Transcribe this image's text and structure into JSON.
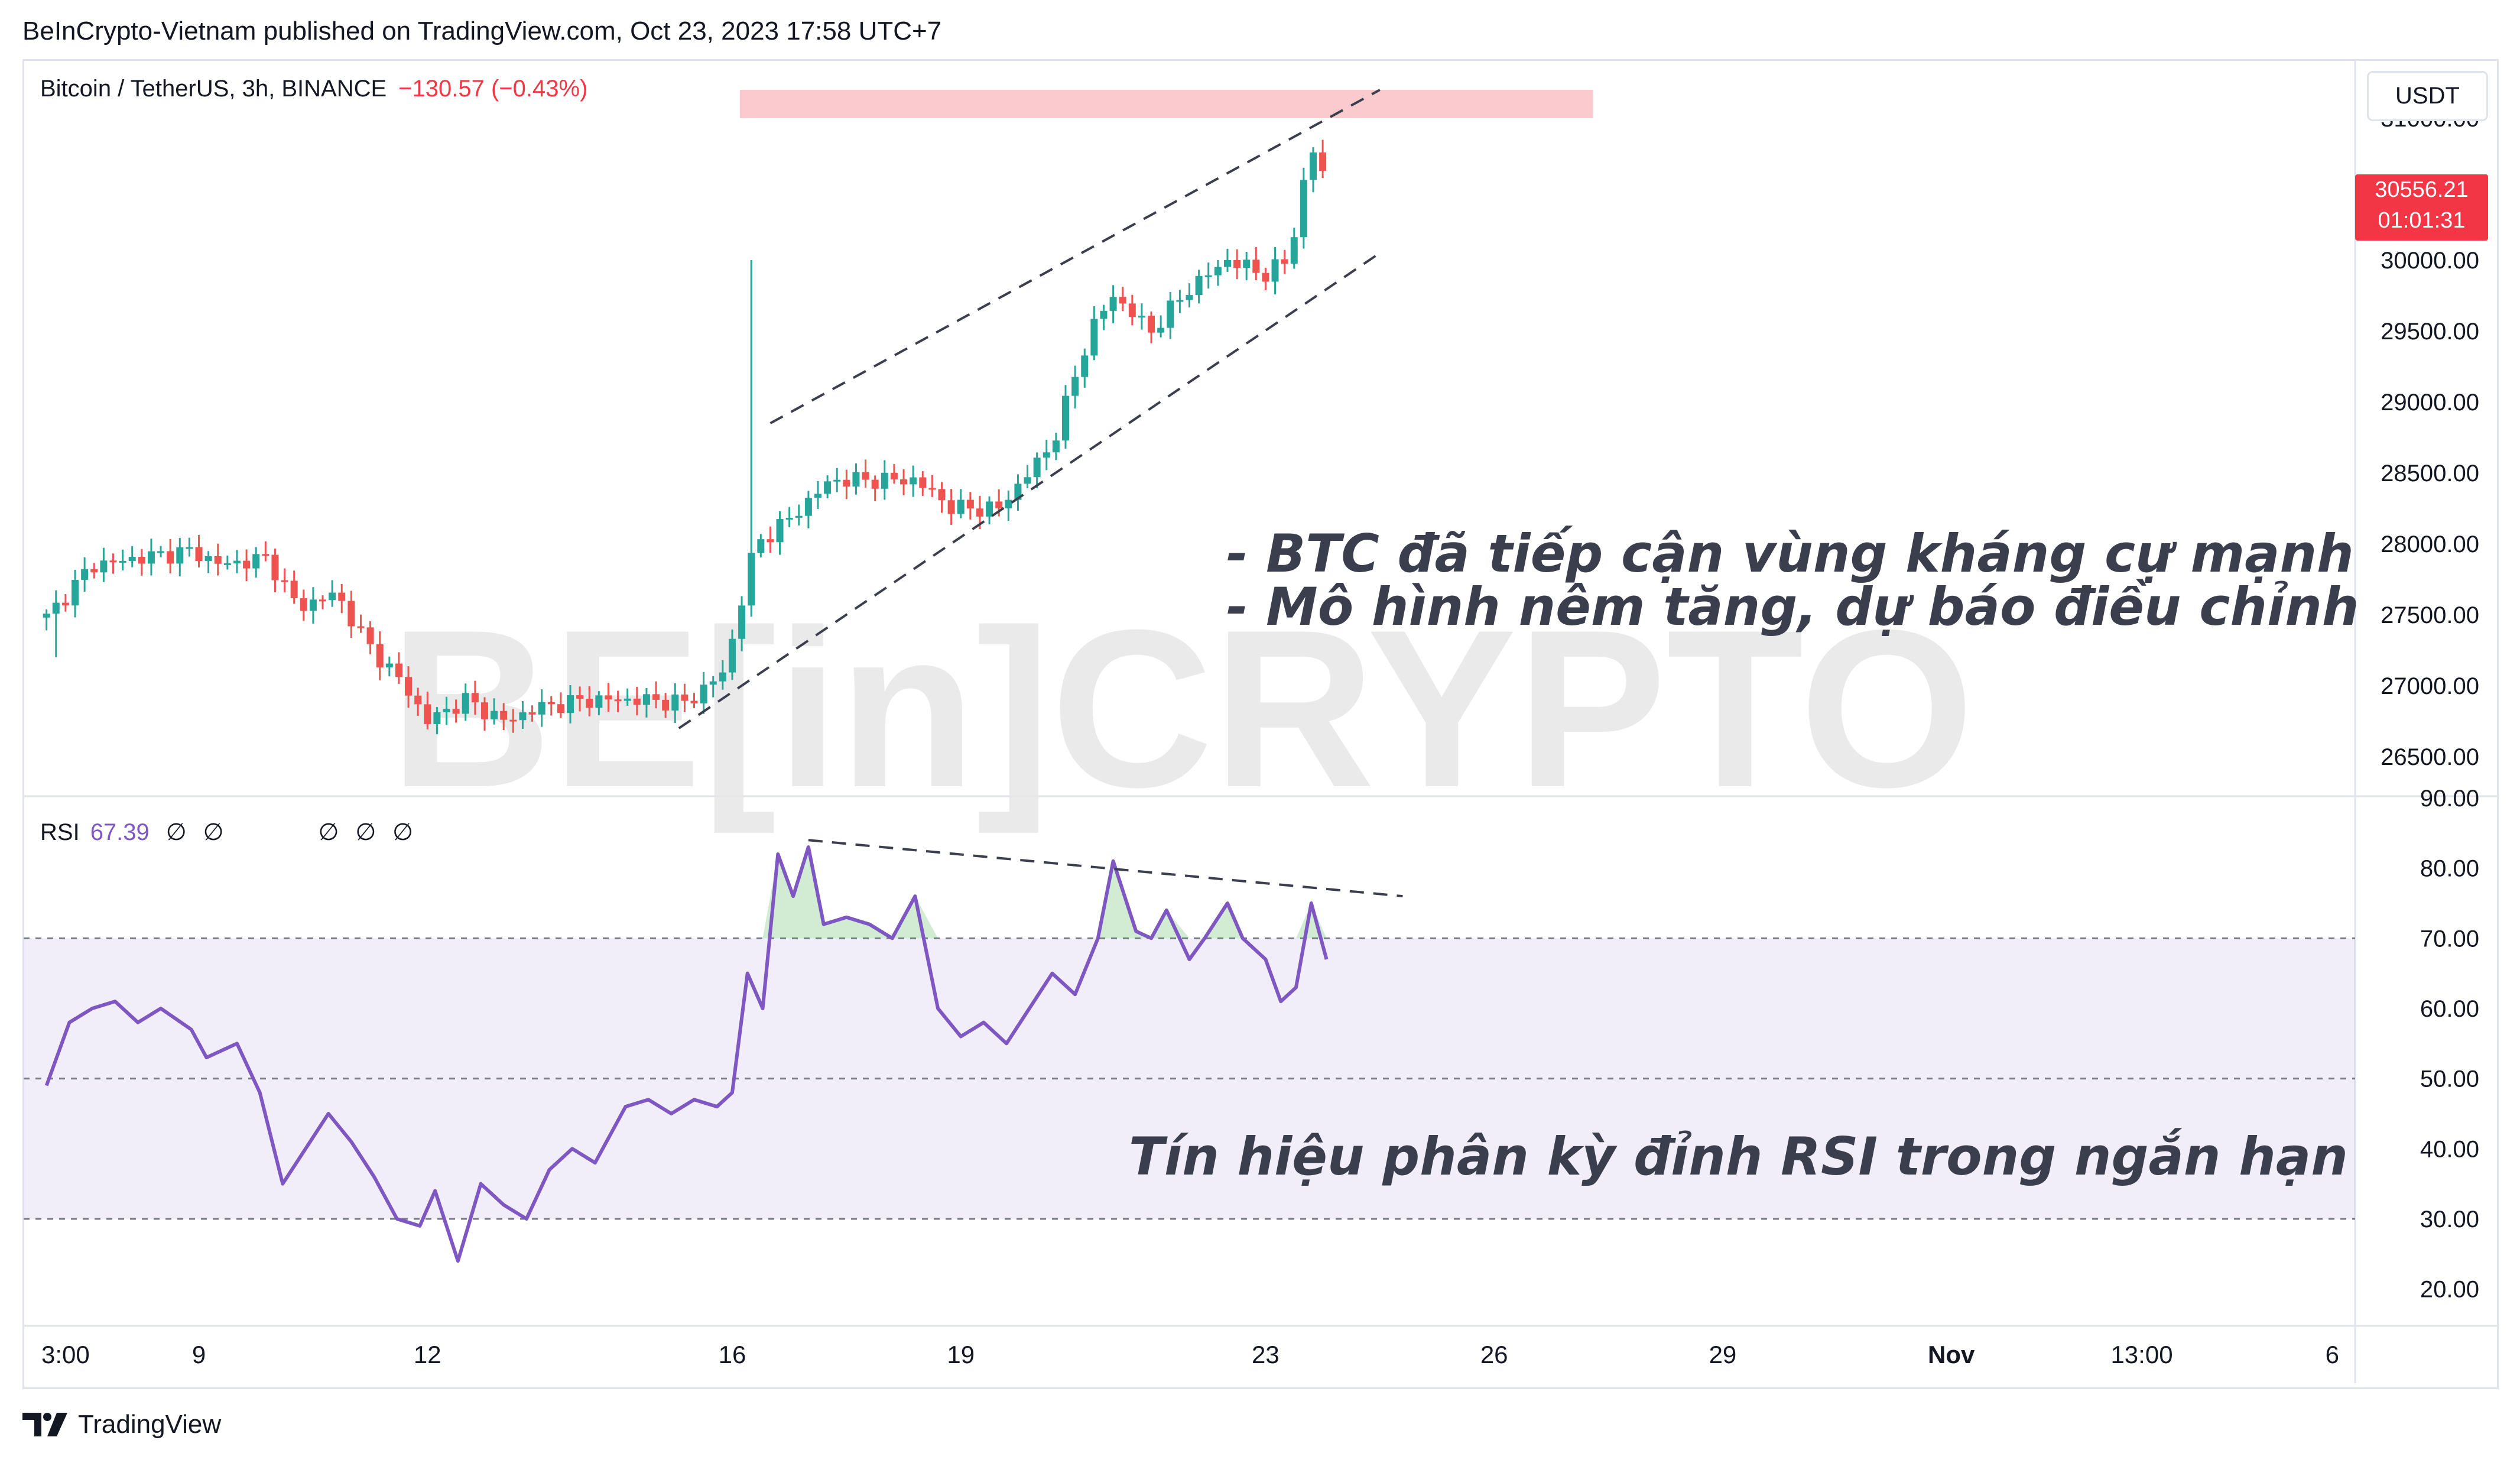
{
  "header": {
    "published": "BeInCrypto-Vietnam published on TradingView.com, Oct 23, 2023 17:58 UTC+7"
  },
  "legend": {
    "symbol": "Bitcoin / TetherUS, 3h, BINANCE",
    "change": "−130.57 (−0.43%)"
  },
  "price_axis": {
    "currency_button": "USDT",
    "labels": [
      "31000.00",
      "30000.00",
      "29500.00",
      "29000.00",
      "28500.00",
      "28000.00",
      "27500.00",
      "27000.00",
      "26500.00"
    ],
    "current_price": "30556.21",
    "countdown": "01:01:31"
  },
  "rsi_panel": {
    "label": "RSI",
    "value": "67.39",
    "na_symbols": [
      "∅",
      "∅",
      "∅",
      "∅",
      "∅"
    ],
    "axis_labels": [
      "90.00",
      "80.00",
      "70.00",
      "60.00",
      "50.00",
      "40.00",
      "30.00",
      "20.00"
    ]
  },
  "time_axis": {
    "labels": [
      "3:00",
      "9",
      "12",
      "16",
      "19",
      "23",
      "26",
      "29",
      "Nov",
      "13:00",
      "6"
    ]
  },
  "annotations": {
    "line1": "- BTC đã tiếp cận vùng kháng cự mạnh",
    "line2": "- Mô hình nêm tăng, dự báo điều chỉnh",
    "rsi_note": "Tín hiệu phân kỳ đỉnh RSI trong ngắn hạn"
  },
  "watermark": "BE[in]CRYPTO",
  "footer": {
    "brand": "TradingView"
  },
  "colors": {
    "up": "#26a69a",
    "down": "#ef5350",
    "rsi_line": "#7e57c2",
    "rsi_band": "#7e57c2",
    "resistance_zone": "#f8b8bd",
    "badge": "#f23645"
  },
  "chart_data": [
    {
      "type": "candlestick",
      "title": "Bitcoin / TetherUS, 3h, BINANCE",
      "ylim": [
        26250,
        31250
      ],
      "x_range_days": [
        6.7,
        37.3
      ],
      "resistance_zone": [
        31000,
        31200
      ],
      "rising_wedge": {
        "upper": [
          [
            16.5,
            28850
          ],
          [
            24.5,
            31200
          ]
        ],
        "lower": [
          [
            15.3,
            26700
          ],
          [
            24.5,
            30050
          ]
        ]
      },
      "close_series": [
        {
          "day": 7.0,
          "close": 27480
        },
        {
          "day": 7.6,
          "close": 27850
        },
        {
          "day": 8.2,
          "close": 27900
        },
        {
          "day": 8.9,
          "close": 27950
        },
        {
          "day": 9.3,
          "close": 27850
        },
        {
          "day": 9.9,
          "close": 27900
        },
        {
          "day": 10.3,
          "close": 27550
        },
        {
          "day": 10.8,
          "close": 27650
        },
        {
          "day": 11.2,
          "close": 27300
        },
        {
          "day": 11.7,
          "close": 27000
        },
        {
          "day": 12.0,
          "close": 26750
        },
        {
          "day": 12.5,
          "close": 26900
        },
        {
          "day": 13.0,
          "close": 26750
        },
        {
          "day": 13.5,
          "close": 26850
        },
        {
          "day": 14.1,
          "close": 26900
        },
        {
          "day": 14.8,
          "close": 26900
        },
        {
          "day": 15.4,
          "close": 26880
        },
        {
          "day": 15.9,
          "close": 27100
        },
        {
          "day": 16.3,
          "close": 28000
        },
        {
          "day": 16.7,
          "close": 28150
        },
        {
          "day": 17.3,
          "close": 28450
        },
        {
          "day": 17.9,
          "close": 28450
        },
        {
          "day": 18.4,
          "close": 28450
        },
        {
          "day": 18.9,
          "close": 28250
        },
        {
          "day": 19.5,
          "close": 28250
        },
        {
          "day": 20.2,
          "close": 28700
        },
        {
          "day": 20.7,
          "close": 29500
        },
        {
          "day": 21.0,
          "close": 29750
        },
        {
          "day": 21.5,
          "close": 29500
        },
        {
          "day": 22.0,
          "close": 29800
        },
        {
          "day": 22.5,
          "close": 30000
        },
        {
          "day": 23.0,
          "close": 29900
        },
        {
          "day": 23.3,
          "close": 30000
        },
        {
          "day": 23.6,
          "close": 30800
        },
        {
          "day": 23.8,
          "close": 30556
        }
      ]
    },
    {
      "type": "line",
      "series": [
        {
          "name": "RSI",
          "x": [
            7.0,
            7.3,
            7.6,
            7.9,
            8.2,
            8.5,
            8.9,
            9.1,
            9.5,
            9.8,
            10.1,
            10.4,
            10.7,
            11.0,
            11.3,
            11.6,
            11.9,
            12.1,
            12.4,
            12.7,
            13.0,
            13.3,
            13.6,
            13.9,
            14.2,
            14.6,
            14.9,
            15.2,
            15.5,
            15.8,
            16.0,
            16.2,
            16.4,
            16.6,
            16.8,
            17.0,
            17.2,
            17.5,
            17.8,
            18.1,
            18.4,
            18.7,
            19.0,
            19.3,
            19.6,
            19.9,
            20.2,
            20.5,
            20.8,
            21.0,
            21.3,
            21.5,
            21.7,
            22.0,
            22.2,
            22.5,
            22.7,
            23.0,
            23.2,
            23.4,
            23.6,
            23.8
          ],
          "values": [
            49,
            58,
            60,
            61,
            58,
            60,
            57,
            53,
            55,
            48,
            35,
            40,
            45,
            41,
            36,
            30,
            29,
            34,
            24,
            35,
            32,
            30,
            37,
            40,
            38,
            46,
            47,
            45,
            47,
            46,
            48,
            65,
            60,
            82,
            76,
            83,
            72,
            73,
            72,
            70,
            76,
            60,
            56,
            58,
            55,
            60,
            65,
            62,
            70,
            81,
            71,
            70,
            74,
            67,
            70,
            75,
            70,
            67,
            61,
            63,
            75,
            67
          ]
        }
      ],
      "ylim": [
        15,
        90
      ],
      "bands": {
        "overbought": 70,
        "middle": 50,
        "oversold": 30
      },
      "divergence_line": [
        [
          17.0,
          84
        ],
        [
          24.8,
          76
        ]
      ]
    }
  ]
}
